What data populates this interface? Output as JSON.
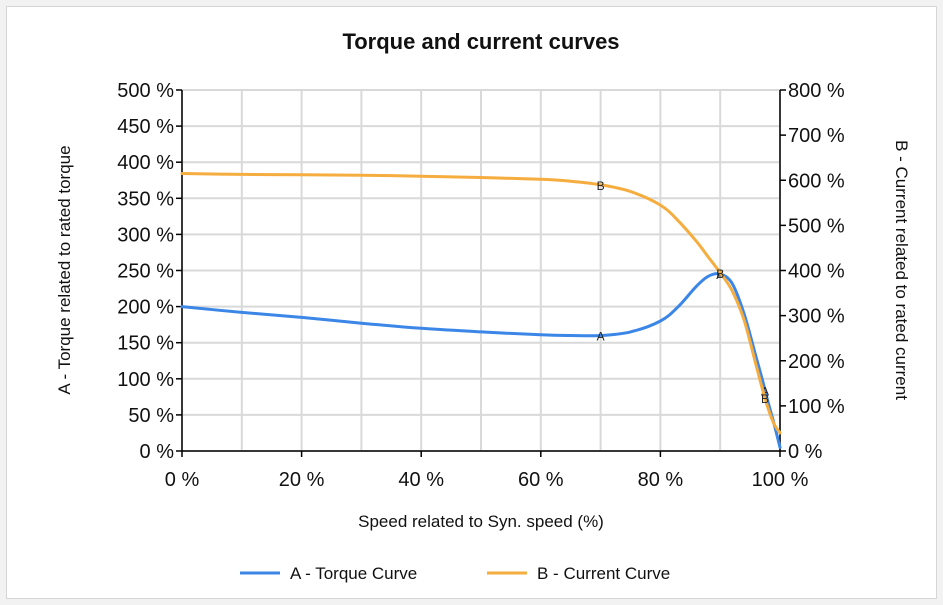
{
  "chart_data": {
    "type": "line",
    "title": "Torque and current curves",
    "xlabel": "Speed related to Syn. speed (%)",
    "ylabel_left": "A - Torque related to rated torque",
    "ylabel_right": "B - Current related to rated current",
    "xlim": [
      0,
      100
    ],
    "ylim_left": [
      0,
      500
    ],
    "ylim_right": [
      0,
      800
    ],
    "x_ticks": [
      "0 %",
      "20 %",
      "40 %",
      "60 %",
      "80 %",
      "100 %"
    ],
    "y_ticks_left": [
      "0 %",
      "50 %",
      "100 %",
      "150 %",
      "200 %",
      "250 %",
      "300 %",
      "350 %",
      "400 %",
      "450 %",
      "500 %"
    ],
    "y_ticks_right": [
      "0 %",
      "100 %",
      "200 %",
      "300 %",
      "400 %",
      "500 %",
      "600 %",
      "700 %",
      "800 %"
    ],
    "grid": true,
    "legend_position": "bottom",
    "series": [
      {
        "name": "A - Torque Curve",
        "marker_label": "A",
        "axis": "left",
        "color": "#3b86e6",
        "x": [
          0,
          10,
          20,
          30,
          40,
          50,
          60,
          65,
          70,
          75,
          80,
          83,
          86,
          88,
          90,
          92,
          94,
          96,
          97,
          98,
          99,
          100
        ],
        "y": [
          200,
          192,
          185,
          177,
          170,
          165,
          161,
          160,
          160,
          165,
          180,
          200,
          228,
          242,
          245,
          232,
          190,
          130,
          100,
          68,
          38,
          5
        ],
        "labels_at": [
          70,
          90,
          97.5
        ]
      },
      {
        "name": "B - Current Curve",
        "marker_label": "B",
        "axis": "right",
        "color": "#f5ad3f",
        "x": [
          0,
          10,
          20,
          30,
          40,
          50,
          60,
          65,
          70,
          75,
          80,
          83,
          86,
          88,
          90,
          92,
          94,
          96,
          97,
          98,
          99,
          100
        ],
        "y": [
          615,
          613,
          612,
          611,
          609,
          606,
          602,
          598,
          590,
          575,
          545,
          510,
          465,
          430,
          395,
          355,
          290,
          190,
          140,
          95,
          60,
          40
        ],
        "labels_at": [
          70,
          90,
          97.5
        ]
      }
    ]
  }
}
